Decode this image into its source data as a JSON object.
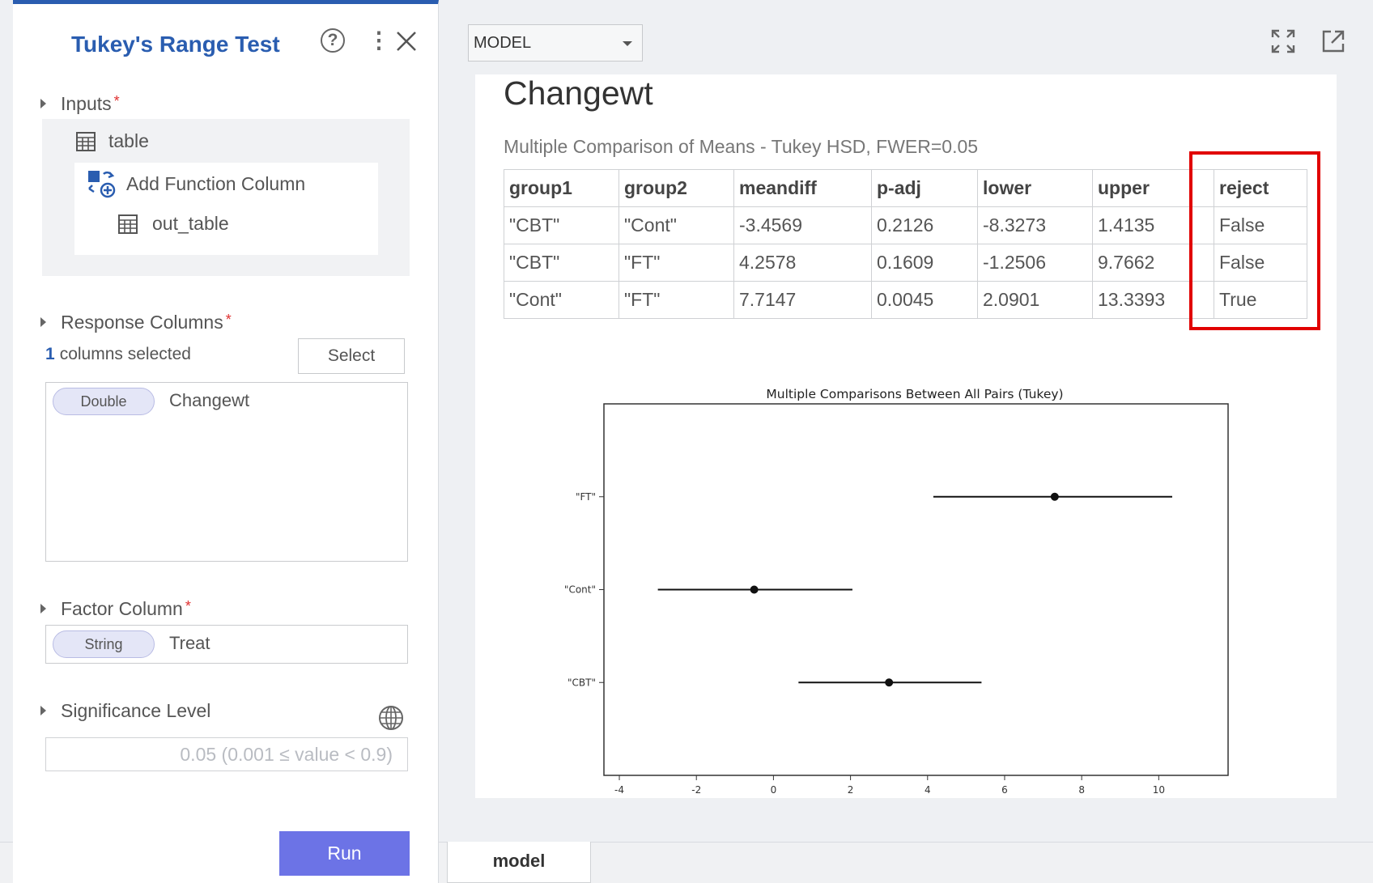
{
  "panel": {
    "title": "Tukey's Range Test",
    "inputs": {
      "label": "Inputs",
      "required_mark": "*",
      "table_name": "table",
      "add_function_label": "Add Function Column",
      "out_table_name": "out_table"
    },
    "response_columns": {
      "label": "Response Columns",
      "required_mark": "*",
      "count": "1",
      "count_suffix": "columns selected",
      "select_label": "Select",
      "items": [
        {
          "type": "Double",
          "name": "Changewt"
        }
      ]
    },
    "factor_column": {
      "label": "Factor Column",
      "required_mark": "*",
      "type": "String",
      "name": "Treat"
    },
    "significance_level": {
      "label": "Significance Level",
      "placeholder": "0.05 (0.001 ≤ value < 0.9)"
    },
    "run_label": "Run"
  },
  "toolbar": {
    "model_select_value": "MODEL"
  },
  "output": {
    "title": "Changewt",
    "subtitle": "Multiple Comparison of Means - Tukey HSD, FWER=0.05",
    "table": {
      "headers": [
        "group1",
        "group2",
        "meandiff",
        "p-adj",
        "lower",
        "upper",
        "reject"
      ],
      "rows": [
        [
          "\"CBT\"",
          "\"Cont\"",
          "-3.4569",
          "0.2126",
          "-8.3273",
          "1.4135",
          "False"
        ],
        [
          "\"CBT\"",
          "\"FT\"",
          "4.2578",
          "0.1609",
          "-1.2506",
          "9.7662",
          "False"
        ],
        [
          "\"Cont\"",
          "\"FT\"",
          "7.7147",
          "0.0045",
          "2.0901",
          "13.3393",
          "True"
        ]
      ]
    }
  },
  "chart_data": {
    "type": "scatter",
    "title": "Multiple Comparisons Between All Pairs (Tukey)",
    "categories": [
      "\"FT\"",
      "\"Cont\"",
      "\"CBT\""
    ],
    "means": [
      7.3,
      -0.5,
      3.0
    ],
    "lower": [
      4.15,
      -3.0,
      0.65
    ],
    "upper": [
      10.35,
      2.05,
      5.4
    ],
    "xlim": [
      -4.4,
      11.8
    ],
    "xticks": [
      -4,
      -2,
      0,
      2,
      4,
      6,
      8,
      10
    ],
    "xlabel": "",
    "ylabel": "",
    "grid": false
  },
  "bottom_tabs": [
    {
      "label": "model"
    }
  ],
  "colors": {
    "accent": "#2a5db0",
    "run_button": "#6c73e6",
    "highlight": "#e10000"
  }
}
